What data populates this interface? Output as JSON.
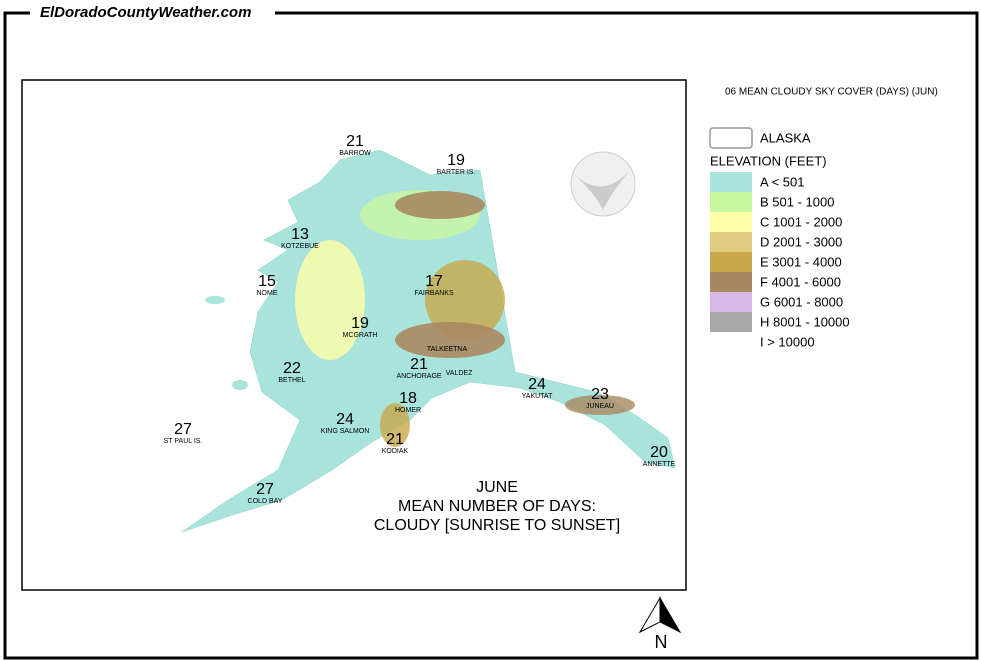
{
  "header": {
    "site": "ElDoradoCountyWeather.com"
  },
  "map_title": "06 MEAN CLOUDY SKY COVER (DAYS) (JUN)",
  "legend": {
    "boundary": "ALASKA",
    "elevation_title": "ELEVATION (FEET)",
    "classes": [
      {
        "label": "A < 501",
        "color": "#a8e4dc"
      },
      {
        "label": "B 501 - 1000",
        "color": "#c8f5a0"
      },
      {
        "label": "C 1001 - 2000",
        "color": "#ffffa8"
      },
      {
        "label": "D 2001 - 3000",
        "color": "#e0cc80"
      },
      {
        "label": "E 3001 - 4000",
        "color": "#c8a848"
      },
      {
        "label": "F 4001 - 6000",
        "color": "#a88860"
      },
      {
        "label": "G 6001 - 8000",
        "color": "#d8b8e8"
      },
      {
        "label": "H 8001 - 10000",
        "color": "#a8a8a8"
      },
      {
        "label": "I > 10000"
      }
    ]
  },
  "stations": [
    {
      "name": "BARROW",
      "days": 21
    },
    {
      "name": "BARTER IS.",
      "days": 19
    },
    {
      "name": "KOTZEBUE",
      "days": 13
    },
    {
      "name": "NOME",
      "days": 15
    },
    {
      "name": "FAIRBANKS",
      "days": 17
    },
    {
      "name": "MCGRATH",
      "days": 19
    },
    {
      "name": "TALKEETNA"
    },
    {
      "name": "BETHEL",
      "days": 22
    },
    {
      "name": "ANCHORAGE",
      "days": 21
    },
    {
      "name": "VALDEZ"
    },
    {
      "name": "YAKUTAT",
      "days": 24
    },
    {
      "name": "JUNEAU",
      "days": 23
    },
    {
      "name": "HOMER",
      "days": 18
    },
    {
      "name": "KING SALMON",
      "days": 24
    },
    {
      "name": "KODIAK",
      "days": 21
    },
    {
      "name": "ST PAUL IS.",
      "days": 27
    },
    {
      "name": "ANNETTE",
      "days": 20
    },
    {
      "name": "COLD BAY",
      "days": 27
    }
  ],
  "caption": [
    "JUNE",
    "MEAN NUMBER OF DAYS:",
    "CLOUDY [SUNRISE TO SUNSET]"
  ],
  "north": "N"
}
